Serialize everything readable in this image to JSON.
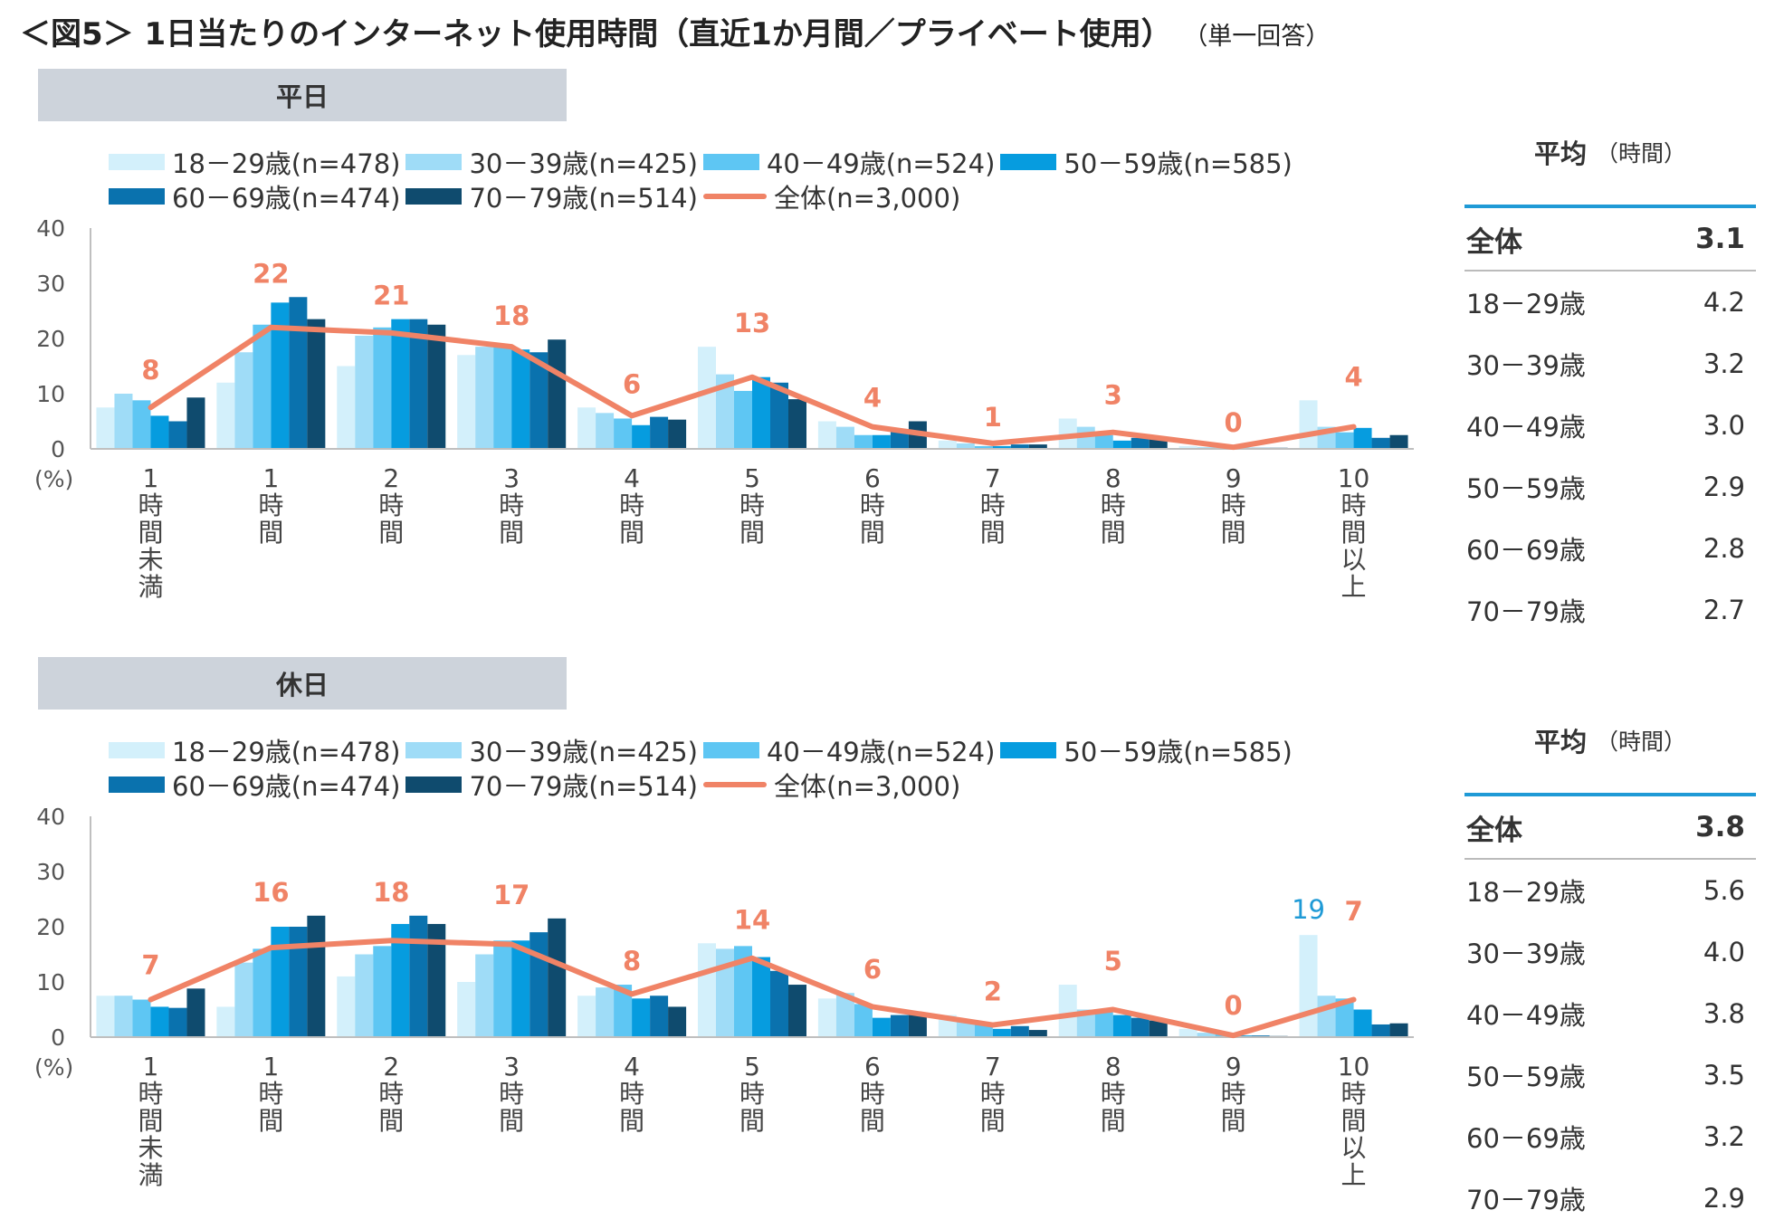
{
  "title": "＜図5＞ 1日当たりのインターネット使用時間（直近1か月間／プライベート使用）",
  "title_note": "（単一回答）",
  "legend_items": [
    {
      "label": "18－29歳(n=478)",
      "color": "#d3f0fb"
    },
    {
      "label": "30－39歳(n=425)",
      "color": "#9fdcf7"
    },
    {
      "label": "40－49歳(n=524)",
      "color": "#5ec6f3"
    },
    {
      "label": "50－59歳(n=585)",
      "color": "#069cdf"
    },
    {
      "label": "60－69歳(n=474)",
      "color": "#0a72ae"
    },
    {
      "label": "70－79歳(n=514)",
      "color": "#0f4b6e"
    },
    {
      "label": "全体(n=3,000)",
      "color": "#f08366"
    }
  ],
  "y_unit": "(%)",
  "category_labels": [
    "1時間未満",
    "1時間",
    "2時間",
    "3時間",
    "4時間",
    "5時間",
    "6時間",
    "7時間",
    "8時間",
    "9時間",
    "10時間以上"
  ],
  "average_header": "平均",
  "average_unit": "（時間）",
  "average_labels": [
    "全体",
    "18－29歳",
    "30－39歳",
    "40－49歳",
    "50－59歳",
    "60－69歳",
    "70－79歳"
  ],
  "chart_data": [
    {
      "type": "bar",
      "panel_label": "平日",
      "categories": [
        "1時間未満",
        "1時間",
        "2時間",
        "3時間",
        "4時間",
        "5時間",
        "6時間",
        "7時間",
        "8時間",
        "9時間",
        "10時間以上"
      ],
      "ylim": [
        0,
        40
      ],
      "yticks": [
        0,
        10,
        20,
        30,
        40
      ],
      "series": [
        {
          "name": "18－29歳(n=478)",
          "values": [
            7.5,
            12.0,
            15.0,
            17.0,
            7.5,
            18.5,
            5.0,
            1.5,
            5.5,
            0.5,
            8.8
          ]
        },
        {
          "name": "30－39歳(n=425)",
          "values": [
            10.0,
            17.5,
            20.5,
            18.5,
            6.5,
            13.5,
            4.0,
            1.0,
            4.0,
            0.3,
            4.0
          ]
        },
        {
          "name": "40－49歳(n=524)",
          "values": [
            8.8,
            22.5,
            22.0,
            18.5,
            5.5,
            10.5,
            2.5,
            0.5,
            2.5,
            0.2,
            3.0
          ]
        },
        {
          "name": "50－59歳(n=585)",
          "values": [
            6.0,
            26.5,
            23.5,
            18.0,
            4.3,
            13.0,
            2.5,
            0.5,
            1.5,
            0.2,
            3.8
          ]
        },
        {
          "name": "60－69歳(n=474)",
          "values": [
            5.0,
            27.5,
            23.5,
            17.5,
            5.8,
            12.0,
            3.5,
            0.8,
            2.0,
            0.2,
            2.0
          ]
        },
        {
          "name": "70－79歳(n=514)",
          "values": [
            9.3,
            23.5,
            22.5,
            19.8,
            5.3,
            9.0,
            5.0,
            0.8,
            2.0,
            0.2,
            2.5
          ]
        }
      ],
      "line_series": {
        "name": "全体(n=3,000)",
        "values": [
          7.5,
          22,
          21,
          18.5,
          6,
          13,
          4,
          1,
          3,
          0.3,
          4
        ],
        "labels": [
          "8",
          "22",
          "21",
          "18",
          "6",
          "13",
          "4",
          "1",
          "3",
          "0",
          "4"
        ]
      },
      "extra_labels": [],
      "averages": [
        "3.1",
        "4.2",
        "3.2",
        "3.0",
        "2.9",
        "2.8",
        "2.7"
      ]
    },
    {
      "type": "bar",
      "panel_label": "休日",
      "categories": [
        "1時間未満",
        "1時間",
        "2時間",
        "3時間",
        "4時間",
        "5時間",
        "6時間",
        "7時間",
        "8時間",
        "9時間",
        "10時間以上"
      ],
      "ylim": [
        0,
        40
      ],
      "yticks": [
        0,
        10,
        20,
        30,
        40
      ],
      "series": [
        {
          "name": "18－29歳(n=478)",
          "values": [
            7.5,
            5.5,
            11.0,
            10.0,
            7.5,
            17.0,
            7.0,
            4.0,
            9.5,
            1.5,
            18.5
          ]
        },
        {
          "name": "30－39歳(n=425)",
          "values": [
            7.5,
            13.5,
            15.0,
            15.0,
            9.0,
            16.0,
            8.0,
            3.0,
            5.0,
            0.8,
            7.5
          ]
        },
        {
          "name": "40－49歳(n=524)",
          "values": [
            6.8,
            16.0,
            16.5,
            17.5,
            9.5,
            16.5,
            6.0,
            2.5,
            5.0,
            0.5,
            7.0
          ]
        },
        {
          "name": "50－59歳(n=585)",
          "values": [
            5.5,
            20.0,
            20.5,
            17.5,
            7.0,
            14.5,
            3.5,
            1.5,
            4.0,
            0.3,
            5.0
          ]
        },
        {
          "name": "60－69歳(n=474)",
          "values": [
            5.3,
            20.0,
            22.0,
            19.0,
            7.5,
            12.0,
            4.0,
            2.0,
            3.5,
            0.3,
            2.3
          ]
        },
        {
          "name": "70－79歳(n=514)",
          "values": [
            8.8,
            22.0,
            20.5,
            21.5,
            5.5,
            9.5,
            4.0,
            1.3,
            3.0,
            0.2,
            2.5
          ]
        }
      ],
      "line_series": {
        "name": "全体(n=3,000)",
        "values": [
          6.8,
          16.2,
          17.5,
          16.8,
          7.8,
          14.3,
          5.5,
          2.2,
          5,
          0.3,
          6.8
        ],
        "labels": [
          "7",
          "16",
          "18",
          "17",
          "8",
          "14",
          "6",
          "2",
          "5",
          "0",
          "7"
        ]
      },
      "extra_labels": [
        {
          "category_index": 10,
          "series_index": 0,
          "text": "19",
          "color": "#1f9ad6"
        }
      ],
      "averages": [
        "3.8",
        "5.6",
        "4.0",
        "3.8",
        "3.5",
        "3.2",
        "2.9"
      ]
    }
  ]
}
